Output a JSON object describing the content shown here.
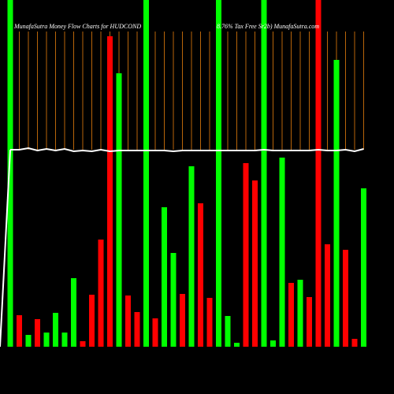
{
  "chart_data": {
    "type": "bar",
    "title": "MunafaSutra  Money Flow  Charts for HUDCOND",
    "subtitle": "8.76% Tax Free Sr2b) MunafaSutra.com",
    "categories": [
      null,
      null,
      null,
      null,
      null,
      null,
      null,
      null,
      null,
      null,
      null,
      null,
      null,
      null,
      null,
      null,
      null,
      null,
      null,
      null,
      null,
      null,
      null,
      null,
      null,
      null,
      null,
      null,
      null,
      null,
      null,
      null,
      null,
      null,
      null,
      null,
      null,
      null,
      null,
      null
    ],
    "values": [
      440,
      40,
      15,
      35,
      18,
      43,
      18,
      87,
      7,
      66,
      136,
      394,
      347,
      65,
      44,
      440,
      36,
      177,
      119,
      67,
      229,
      182,
      62,
      440,
      39,
      5,
      233,
      211,
      440,
      8,
      240,
      81,
      85,
      63,
      440,
      130,
      364,
      123,
      10,
      201
    ],
    "colors": [
      "#00ff00",
      "#ff0000",
      "#00ff00",
      "#ff0000",
      "#00ff00",
      "#00ff00",
      "#00ff00",
      "#00ff00",
      "#ff0000",
      "#ff0000",
      "#ff0000",
      "#ff0000",
      "#00ff00",
      "#ff0000",
      "#ff0000",
      "#00ff00",
      "#ff0000",
      "#00ff00",
      "#00ff00",
      "#ff0000",
      "#00ff00",
      "#ff0000",
      "#ff0000",
      "#00ff00",
      "#00ff00",
      "#00ff00",
      "#ff0000",
      "#ff0000",
      "#00ff00",
      "#00ff00",
      "#00ff00",
      "#ff0000",
      "#00ff00",
      "#ff0000",
      "#ff0000",
      "#ff0000",
      "#00ff00",
      "#ff0000",
      "#ff0000",
      "#00ff00"
    ],
    "line": {
      "color": "#ffffff",
      "values": [
        250,
        250,
        252,
        249,
        251,
        249,
        251,
        248,
        249,
        248,
        250,
        248,
        249,
        249,
        249,
        249,
        249,
        249,
        248,
        249,
        249,
        249,
        249,
        249,
        249,
        249,
        249,
        249,
        250,
        249,
        249,
        249,
        249,
        249,
        250,
        249,
        249,
        250,
        248,
        251
      ]
    },
    "ylim": [
      0,
      440
    ]
  }
}
